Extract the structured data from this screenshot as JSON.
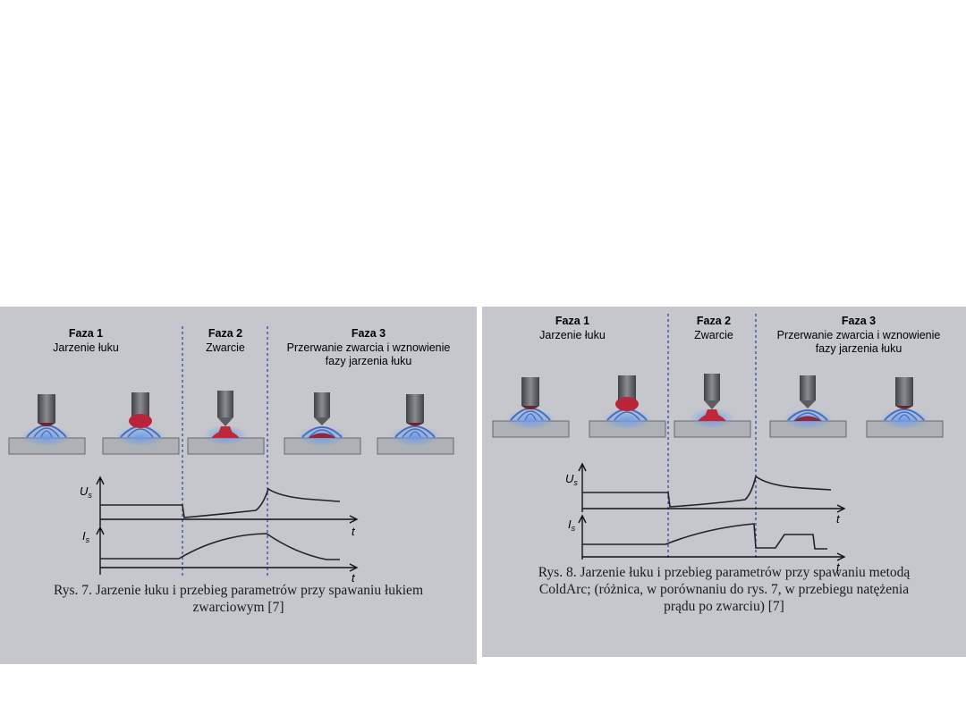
{
  "figures": [
    {
      "id": "rys7",
      "phases": [
        {
          "title": "Faza 1",
          "desc": [
            "Jarzenie łuku"
          ]
        },
        {
          "title": "Faza 2",
          "desc": [
            "Zwarcie"
          ]
        },
        {
          "title": "Faza 3",
          "desc": [
            "Przerwanie zwarcia i wznowienie",
            "fazy jarzenia łuku"
          ]
        }
      ],
      "voltage_label": "U",
      "voltage_sub": "s",
      "current_label": "I",
      "current_sub": "s",
      "time_label": "t",
      "caption": [
        "Rys. 7. Jarzenie łuku i przebieg parametrów przy spawaniu łukiem",
        "zwarciowym [7]"
      ]
    },
    {
      "id": "rys8",
      "phases": [
        {
          "title": "Faza 1",
          "desc": [
            "Jarzenie łuku"
          ]
        },
        {
          "title": "Faza 2",
          "desc": [
            "Zwarcie"
          ]
        },
        {
          "title": "Faza 3",
          "desc": [
            "Przerwanie zwarcia i wznowienie",
            "fazy jarzenia łuku"
          ]
        }
      ],
      "voltage_label": "U",
      "voltage_sub": "s",
      "current_label": "I",
      "current_sub": "s",
      "time_label": "t",
      "caption": [
        "Rys. 8. Jarzenie łuku i przebieg parametrów przy spawaniu metodą",
        "ColdArc; (różnica, w porównaniu do rys. 7, w przebiegu natężenia",
        "prądu po zwarciu) [7]"
      ]
    }
  ],
  "colors": {
    "panel": "#c5c7cc",
    "plate": "#aeb1b5",
    "electrode": "#5b5d62",
    "arc": "#5a86d6",
    "weld": "#c0283a",
    "divider": "#2e4fa0"
  }
}
